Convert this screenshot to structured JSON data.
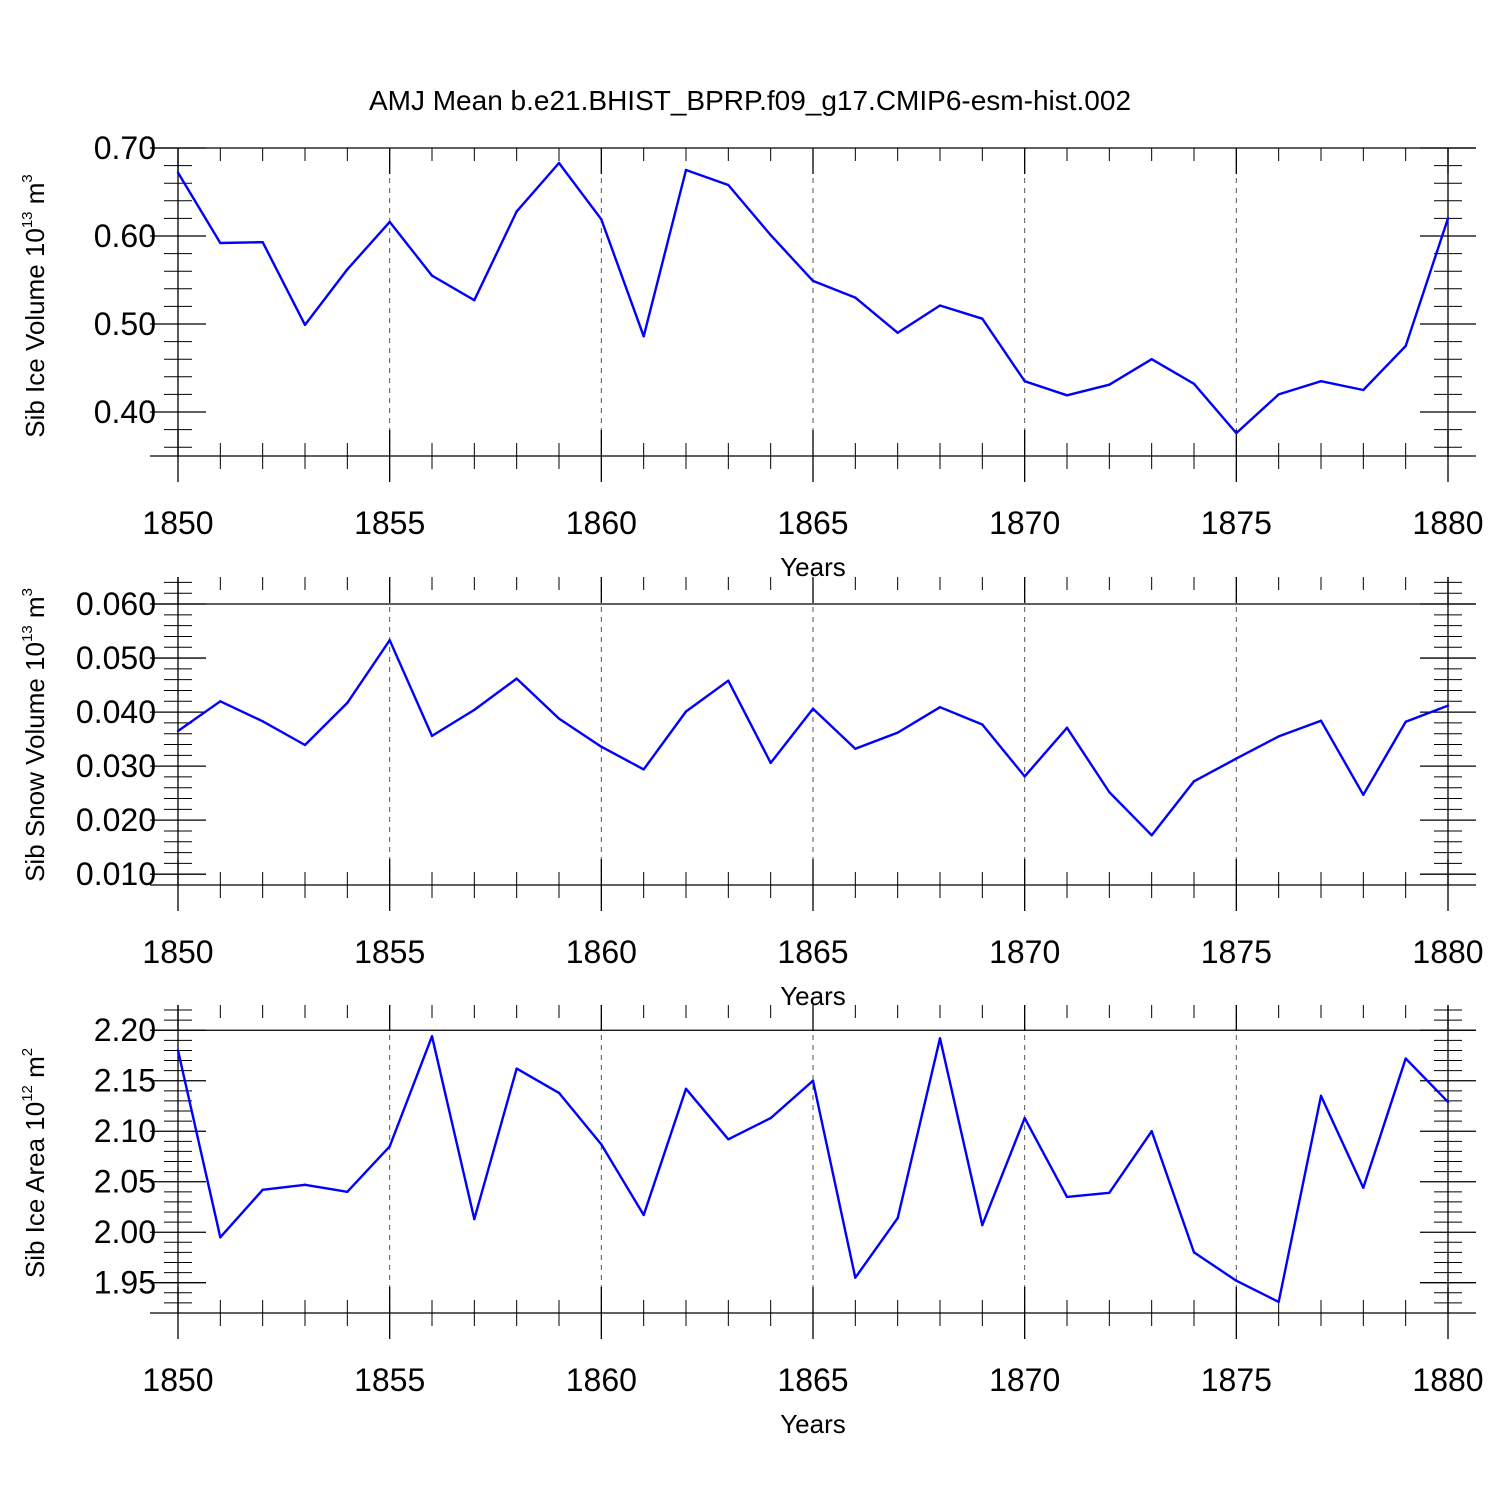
{
  "figure": {
    "title": "AMJ Mean b.e21.BHIST_BPRP.f09_g17.CMIP6-esm-hist.002"
  },
  "style": {
    "line_color": "#0000ff",
    "axis_color": "#000000",
    "grid_color": "#555555"
  },
  "chart_data": [
    {
      "type": "line",
      "name": "sib-ice-volume",
      "ylabel": {
        "main": "Sib Ice Volume 10",
        "exp": "13",
        "unit": " m",
        "unit_exp": "3"
      },
      "xlabel": "Years",
      "xlim": [
        1850,
        1880
      ],
      "ylim": [
        0.35,
        0.7
      ],
      "x_ticks": [
        1850,
        1855,
        1860,
        1865,
        1870,
        1875,
        1880
      ],
      "x_tick_labels": [
        "1850",
        "1855",
        "1860",
        "1865",
        "1870",
        "1875",
        "1880"
      ],
      "y_ticks": [
        0.4,
        0.5,
        0.6,
        0.7
      ],
      "y_tick_labels": [
        "0.40",
        "0.50",
        "0.60",
        "0.70"
      ],
      "y_minor_step": 0.02,
      "grid": "vertical dashed at major x ticks",
      "x": [
        1850,
        1851,
        1852,
        1853,
        1854,
        1855,
        1856,
        1857,
        1858,
        1859,
        1860,
        1861,
        1862,
        1863,
        1864,
        1865,
        1866,
        1867,
        1868,
        1869,
        1870,
        1871,
        1872,
        1873,
        1874,
        1875,
        1876,
        1877,
        1878,
        1879,
        1880
      ],
      "values": [
        0.672,
        0.592,
        0.593,
        0.499,
        0.562,
        0.616,
        0.555,
        0.527,
        0.628,
        0.683,
        0.619,
        0.486,
        0.675,
        0.658,
        0.601,
        0.549,
        0.53,
        0.49,
        0.521,
        0.506,
        0.435,
        0.419,
        0.431,
        0.46,
        0.432,
        0.376,
        0.42,
        0.435,
        0.425,
        0.475,
        0.62
      ]
    },
    {
      "type": "line",
      "name": "sib-snow-volume",
      "ylabel": {
        "main": "Sib Snow Volume 10",
        "exp": "13",
        "unit": " m",
        "unit_exp": "3"
      },
      "xlabel": "Years",
      "xlim": [
        1850,
        1880
      ],
      "ylim": [
        0.008,
        0.065
      ],
      "x_ticks": [
        1850,
        1855,
        1860,
        1865,
        1870,
        1875,
        1880
      ],
      "x_tick_labels": [
        "1850",
        "1855",
        "1860",
        "1865",
        "1870",
        "1875",
        "1880"
      ],
      "y_ticks": [
        0.01,
        0.02,
        0.03,
        0.04,
        0.05,
        0.06
      ],
      "y_tick_labels": [
        "0.010",
        "0.020",
        "0.030",
        "0.040",
        "0.050",
        "0.060"
      ],
      "y_minor_step": 0.002,
      "grid": "vertical dashed at major x ticks",
      "x": [
        1850,
        1851,
        1852,
        1853,
        1854,
        1855,
        1856,
        1857,
        1858,
        1859,
        1860,
        1861,
        1862,
        1863,
        1864,
        1865,
        1866,
        1867,
        1868,
        1869,
        1870,
        1871,
        1872,
        1873,
        1874,
        1875,
        1876,
        1877,
        1878,
        1879,
        1880
      ],
      "values": [
        0.0365,
        0.042,
        0.0383,
        0.0339,
        0.0417,
        0.0533,
        0.0356,
        0.0404,
        0.0462,
        0.0388,
        0.0336,
        0.0294,
        0.0401,
        0.0458,
        0.0306,
        0.0406,
        0.0332,
        0.0362,
        0.0409,
        0.0377,
        0.0281,
        0.0371,
        0.0252,
        0.0172,
        0.0272,
        0.0314,
        0.0355,
        0.0384,
        0.0247,
        0.0382,
        0.0412
      ]
    },
    {
      "type": "line",
      "name": "sib-ice-area",
      "ylabel": {
        "main": "Sib Ice Area 10",
        "exp": "12",
        "unit": " m",
        "unit_exp": "2"
      },
      "xlabel": "Years",
      "xlim": [
        1850,
        1880
      ],
      "ylim": [
        1.92,
        2.225
      ],
      "x_ticks": [
        1850,
        1855,
        1860,
        1865,
        1870,
        1875,
        1880
      ],
      "x_tick_labels": [
        "1850",
        "1855",
        "1860",
        "1865",
        "1870",
        "1875",
        "1880"
      ],
      "y_ticks": [
        1.95,
        2.0,
        2.05,
        2.1,
        2.15,
        2.2
      ],
      "y_tick_labels": [
        "1.95",
        "2.00",
        "2.05",
        "2.10",
        "2.15",
        "2.20"
      ],
      "y_minor_step": 0.01,
      "grid": "vertical dashed at major x ticks",
      "x": [
        1850,
        1851,
        1852,
        1853,
        1854,
        1855,
        1856,
        1857,
        1858,
        1859,
        1860,
        1861,
        1862,
        1863,
        1864,
        1865,
        1866,
        1867,
        1868,
        1869,
        1870,
        1871,
        1872,
        1873,
        1874,
        1875,
        1876,
        1877,
        1878,
        1879,
        1880
      ],
      "values": [
        2.18,
        1.995,
        2.042,
        2.047,
        2.04,
        2.085,
        2.194,
        2.013,
        2.162,
        2.138,
        2.087,
        2.017,
        2.142,
        2.092,
        2.113,
        2.15,
        1.955,
        2.014,
        2.192,
        2.007,
        2.113,
        2.035,
        2.039,
        2.1,
        1.98,
        1.952,
        1.931,
        2.135,
        2.044,
        2.172,
        2.129
      ]
    }
  ]
}
